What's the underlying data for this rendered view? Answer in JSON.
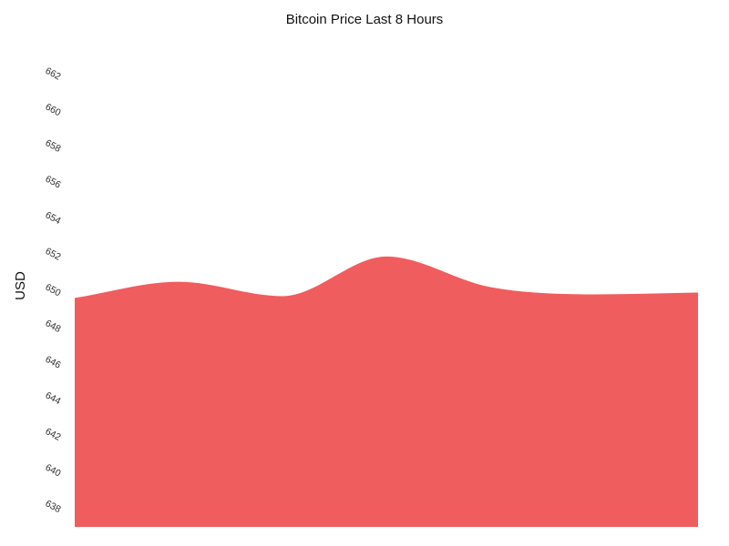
{
  "chart_data": {
    "type": "area",
    "title": "Bitcoin Price Last 8 Hours",
    "xlabel": "",
    "ylabel": "USD",
    "x": [
      0,
      1,
      2,
      3,
      4,
      5,
      6
    ],
    "series": [
      {
        "values": [
          649.6,
          650.5,
          649.7,
          651.9,
          650.2,
          649.8,
          649.9
        ]
      }
    ],
    "yticks": [
      638,
      640,
      642,
      644,
      646,
      648,
      650,
      652,
      654,
      656,
      658,
      660,
      662
    ],
    "ylim": [
      636.9,
      663.1
    ],
    "grid": false,
    "legend": "none",
    "color": "#f05d5e"
  }
}
